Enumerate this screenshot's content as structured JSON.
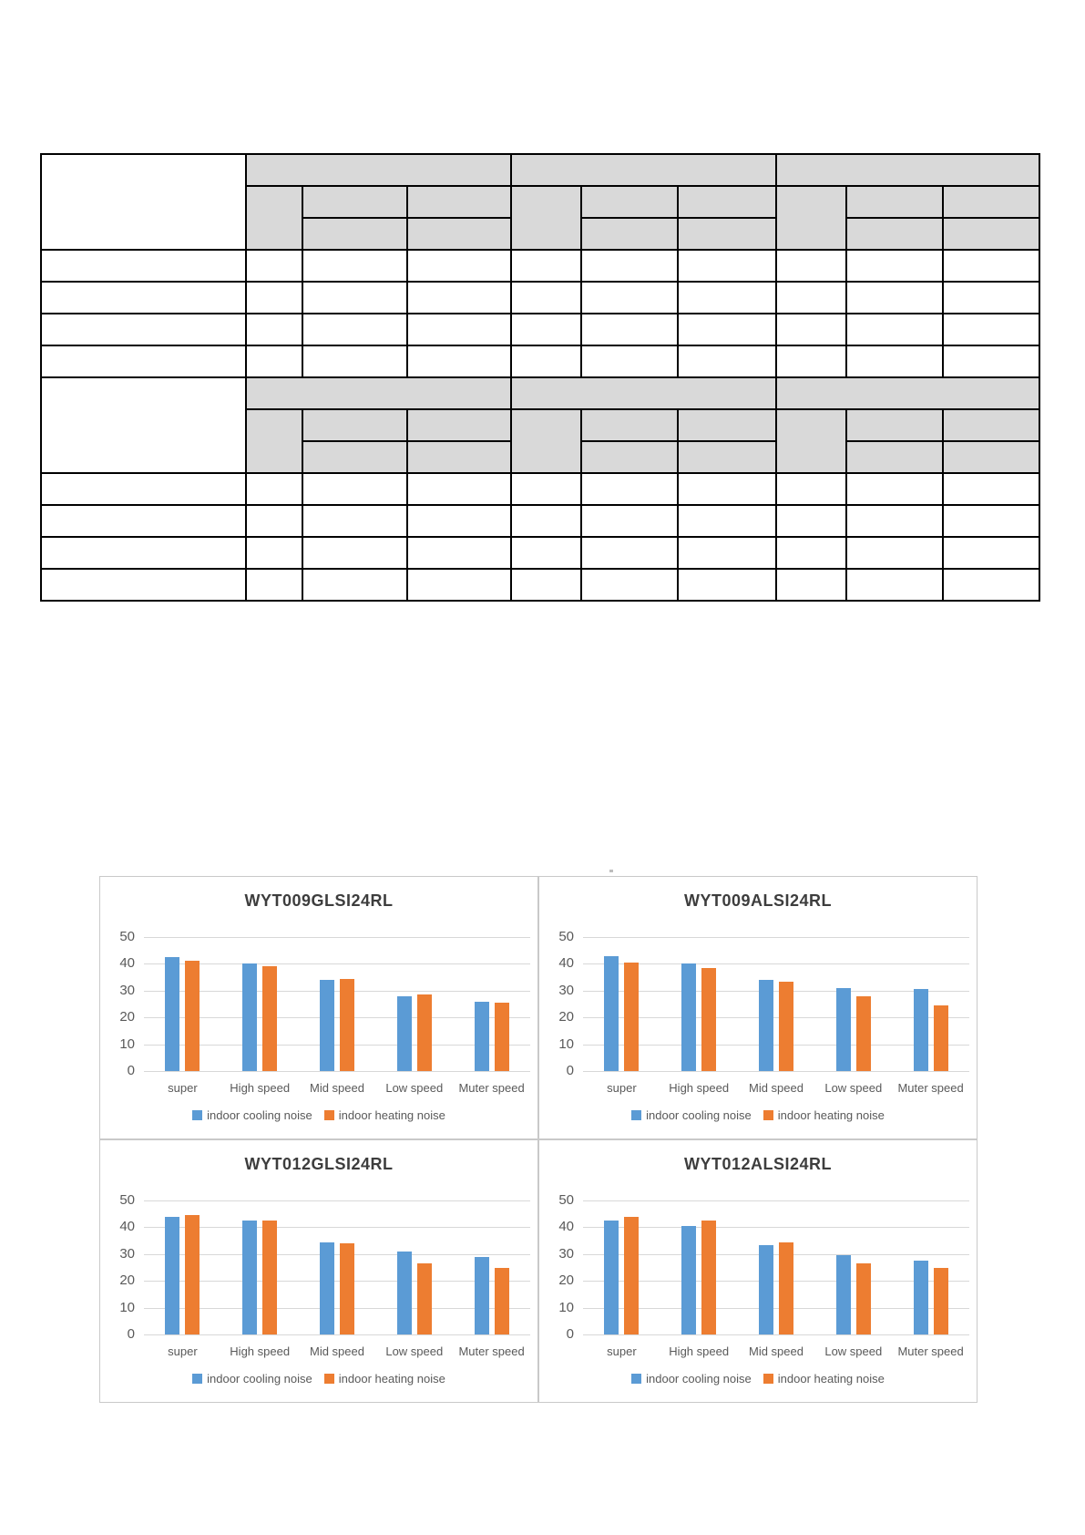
{
  "table": {
    "header_fill": "#d9d9d9",
    "border_color": "#000000",
    "sections": 2,
    "column_groups_per_section": 3,
    "header_rows_per_section": 3,
    "data_rows_per_section": 4,
    "all_cells_empty": true
  },
  "chart_data": [
    {
      "type": "bar",
      "title": "WYT009GLSI24RL",
      "categories": [
        "super",
        "High speed",
        "Mid speed",
        "Low speed",
        "Muter speed"
      ],
      "series": [
        {
          "name": "indoor cooling noise",
          "color": "#5b9bd5",
          "values": [
            42.5,
            40,
            34,
            28,
            26
          ]
        },
        {
          "name": "indoor heating noise",
          "color": "#ed7d31",
          "values": [
            41,
            39,
            34.5,
            28.5,
            25.5
          ]
        }
      ],
      "xlabel": "",
      "ylabel": "",
      "ylim": [
        0,
        50
      ],
      "yticks": [
        0,
        10,
        20,
        30,
        40,
        50
      ],
      "grid": true,
      "legend_position": "bottom"
    },
    {
      "type": "bar",
      "title": "WYT009ALSI24RL",
      "categories": [
        "super",
        "High speed",
        "Mid speed",
        "Low speed",
        "Muter speed"
      ],
      "series": [
        {
          "name": "indoor cooling noise",
          "color": "#5b9bd5",
          "values": [
            43,
            40,
            34,
            31,
            30.5
          ]
        },
        {
          "name": "indoor heating noise",
          "color": "#ed7d31",
          "values": [
            40.5,
            38.5,
            33.5,
            28,
            24.5
          ]
        }
      ],
      "xlabel": "",
      "ylabel": "",
      "ylim": [
        0,
        50
      ],
      "yticks": [
        0,
        10,
        20,
        30,
        40,
        50
      ],
      "grid": true,
      "legend_position": "bottom"
    },
    {
      "type": "bar",
      "title": "WYT012GLSI24RL",
      "categories": [
        "super",
        "High speed",
        "Mid speed",
        "Low speed",
        "Muter speed"
      ],
      "series": [
        {
          "name": "indoor cooling noise",
          "color": "#5b9bd5",
          "values": [
            44,
            42.5,
            34.5,
            31,
            29
          ]
        },
        {
          "name": "indoor heating noise",
          "color": "#ed7d31",
          "values": [
            44.5,
            42.5,
            34,
            26.5,
            25
          ]
        }
      ],
      "xlabel": "",
      "ylabel": "",
      "ylim": [
        0,
        50
      ],
      "yticks": [
        0,
        10,
        20,
        30,
        40,
        50
      ],
      "grid": true,
      "legend_position": "bottom"
    },
    {
      "type": "bar",
      "title": "WYT012ALSI24RL",
      "categories": [
        "super",
        "High speed",
        "Mid speed",
        "Low speed",
        "Muter speed"
      ],
      "series": [
        {
          "name": "indoor cooling noise",
          "color": "#5b9bd5",
          "values": [
            42.5,
            40.5,
            33.5,
            29.5,
            27.5
          ]
        },
        {
          "name": "indoor heating noise",
          "color": "#ed7d31",
          "values": [
            44,
            42.5,
            34.5,
            26.5,
            25
          ]
        }
      ],
      "xlabel": "",
      "ylabel": "",
      "ylim": [
        0,
        50
      ],
      "yticks": [
        0,
        10,
        20,
        30,
        40,
        50
      ],
      "grid": true,
      "legend_position": "bottom"
    }
  ]
}
